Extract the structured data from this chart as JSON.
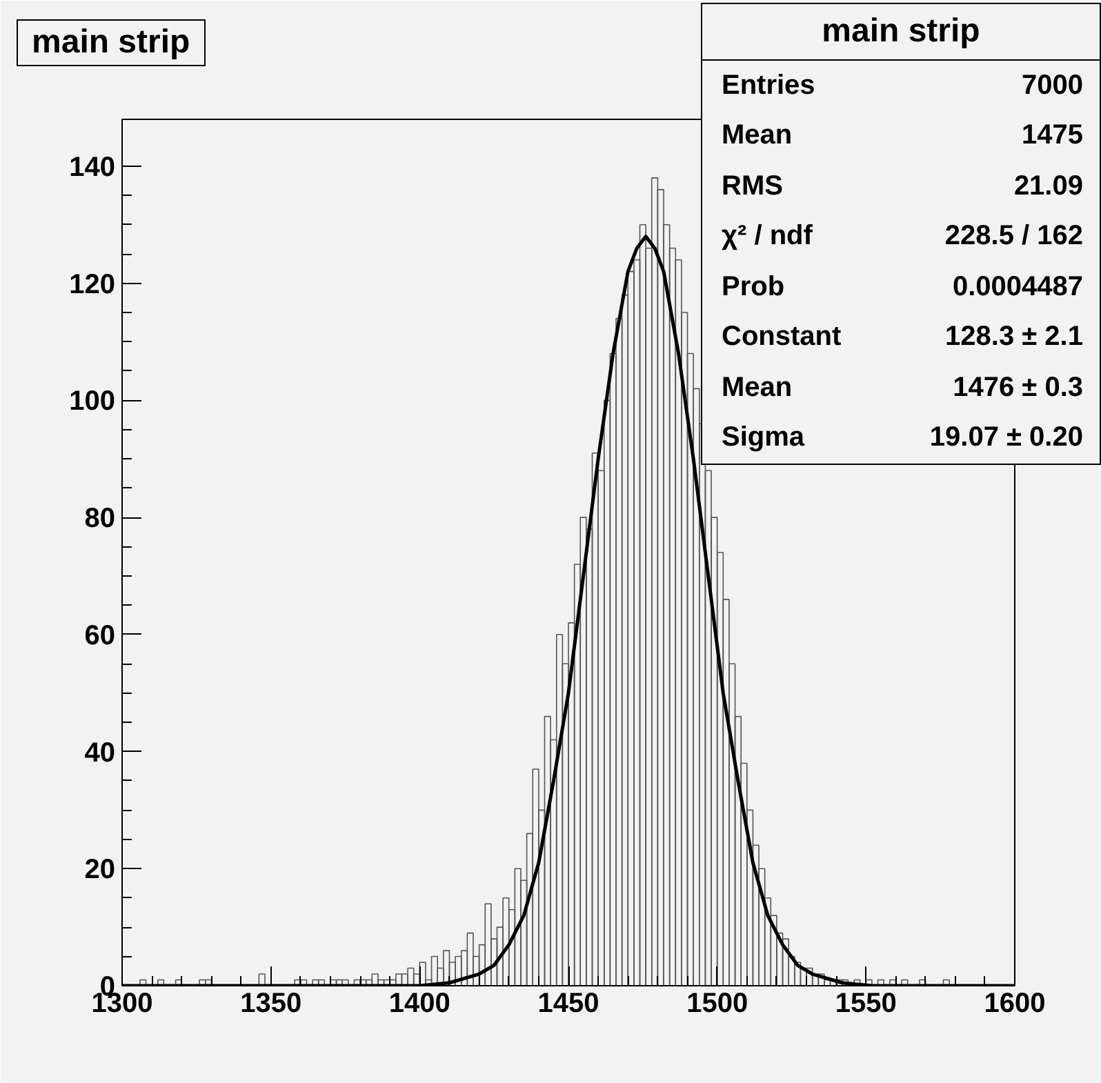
{
  "chart_data": {
    "type": "histogram",
    "title": "main strip",
    "bins": [
      1300,
      1302,
      1304,
      1306,
      1308,
      1310,
      1312,
      1314,
      1316,
      1318,
      1320,
      1322,
      1324,
      1326,
      1328,
      1330,
      1332,
      1334,
      1336,
      1338,
      1340,
      1342,
      1344,
      1346,
      1348,
      1350,
      1352,
      1354,
      1356,
      1358,
      1360,
      1362,
      1364,
      1366,
      1368,
      1370,
      1372,
      1374,
      1376,
      1378,
      1380,
      1382,
      1384,
      1386,
      1388,
      1390,
      1392,
      1394,
      1396,
      1398,
      1400,
      1402,
      1404,
      1406,
      1408,
      1410,
      1412,
      1414,
      1416,
      1418,
      1420,
      1422,
      1424,
      1426,
      1428,
      1430,
      1432,
      1434,
      1436,
      1438,
      1440,
      1442,
      1444,
      1446,
      1448,
      1450,
      1452,
      1454,
      1456,
      1458,
      1460,
      1462,
      1464,
      1466,
      1468,
      1470,
      1472,
      1474,
      1476,
      1478,
      1480,
      1482,
      1484,
      1486,
      1488,
      1490,
      1492,
      1494,
      1496,
      1498,
      1500,
      1502,
      1504,
      1506,
      1508,
      1510,
      1512,
      1514,
      1516,
      1518,
      1520,
      1522,
      1524,
      1526,
      1528,
      1530,
      1532,
      1534,
      1536,
      1538,
      1540,
      1542,
      1544,
      1546,
      1548,
      1550,
      1552,
      1554,
      1556,
      1558,
      1560,
      1562,
      1564,
      1566,
      1568,
      1570,
      1572,
      1574,
      1576,
      1578,
      1580,
      1582,
      1584,
      1586,
      1588,
      1590,
      1592,
      1594,
      1596,
      1598,
      1600
    ],
    "values": [
      0,
      0,
      0,
      1,
      0,
      0,
      1,
      0,
      0,
      1,
      0,
      0,
      0,
      1,
      1,
      0,
      0,
      0,
      0,
      0,
      0,
      0,
      0,
      2,
      0,
      0,
      0,
      0,
      0,
      1,
      1,
      0,
      1,
      1,
      0,
      1,
      1,
      1,
      0,
      1,
      1,
      1,
      2,
      1,
      1,
      1,
      2,
      2,
      3,
      2,
      4,
      1,
      5,
      3,
      6,
      4,
      5,
      6,
      9,
      5,
      7,
      14,
      8,
      10,
      15,
      13,
      20,
      18,
      26,
      37,
      30,
      46,
      42,
      60,
      55,
      62,
      72,
      80,
      78,
      91,
      88,
      100,
      108,
      114,
      118,
      122,
      124,
      130,
      126,
      138,
      136,
      130,
      126,
      124,
      115,
      108,
      102,
      96,
      88,
      80,
      74,
      66,
      55,
      46,
      38,
      30,
      24,
      20,
      15,
      12,
      9,
      8,
      5,
      4,
      3,
      3,
      2,
      2,
      1,
      1,
      1,
      1,
      0,
      1,
      0,
      1,
      0,
      1,
      0,
      1,
      0,
      1,
      0,
      0,
      1,
      0,
      0,
      0,
      1,
      0,
      0,
      0,
      0,
      0,
      0,
      0,
      0,
      0,
      0,
      0
    ],
    "color": "#555555",
    "series": [
      {
        "type": "line",
        "color": "#000000",
        "x": [
          1300,
          1380,
          1400,
          1410,
          1420,
          1425,
          1430,
          1435,
          1440,
          1445,
          1450,
          1455,
          1460,
          1465,
          1470,
          1473,
          1476,
          1479,
          1482,
          1487,
          1492,
          1497,
          1502,
          1507,
          1512,
          1517,
          1522,
          1527,
          1532,
          1542,
          1552,
          1600
        ],
        "values": [
          0,
          0,
          0,
          0.5,
          2,
          3.5,
          7,
          12,
          21,
          35,
          50,
          70,
          90,
          108,
          122,
          126,
          128,
          126,
          122,
          108,
          90,
          70,
          50,
          35,
          21,
          12,
          7,
          3.5,
          2,
          0.5,
          0,
          0
        ]
      }
    ],
    "xlim": [
      1300,
      1600
    ],
    "ylim": [
      0,
      148
    ],
    "xticks": [
      1300,
      1350,
      1400,
      1450,
      1500,
      1550,
      1600
    ],
    "yticks": [
      0,
      20,
      40,
      60,
      80,
      100,
      120,
      140
    ],
    "grid": false,
    "annotations": [
      "main strip",
      "Entries",
      "7000",
      "Mean",
      "1475",
      "RMS",
      "21.09",
      "χ² / ndf",
      "228.5 / 162",
      "Prob",
      "0.0004487",
      "Constant",
      "128.3 ± 2.1",
      "Mean",
      "1476 ± 0.3",
      "Sigma",
      "19.07 ± 0.20"
    ]
  }
}
